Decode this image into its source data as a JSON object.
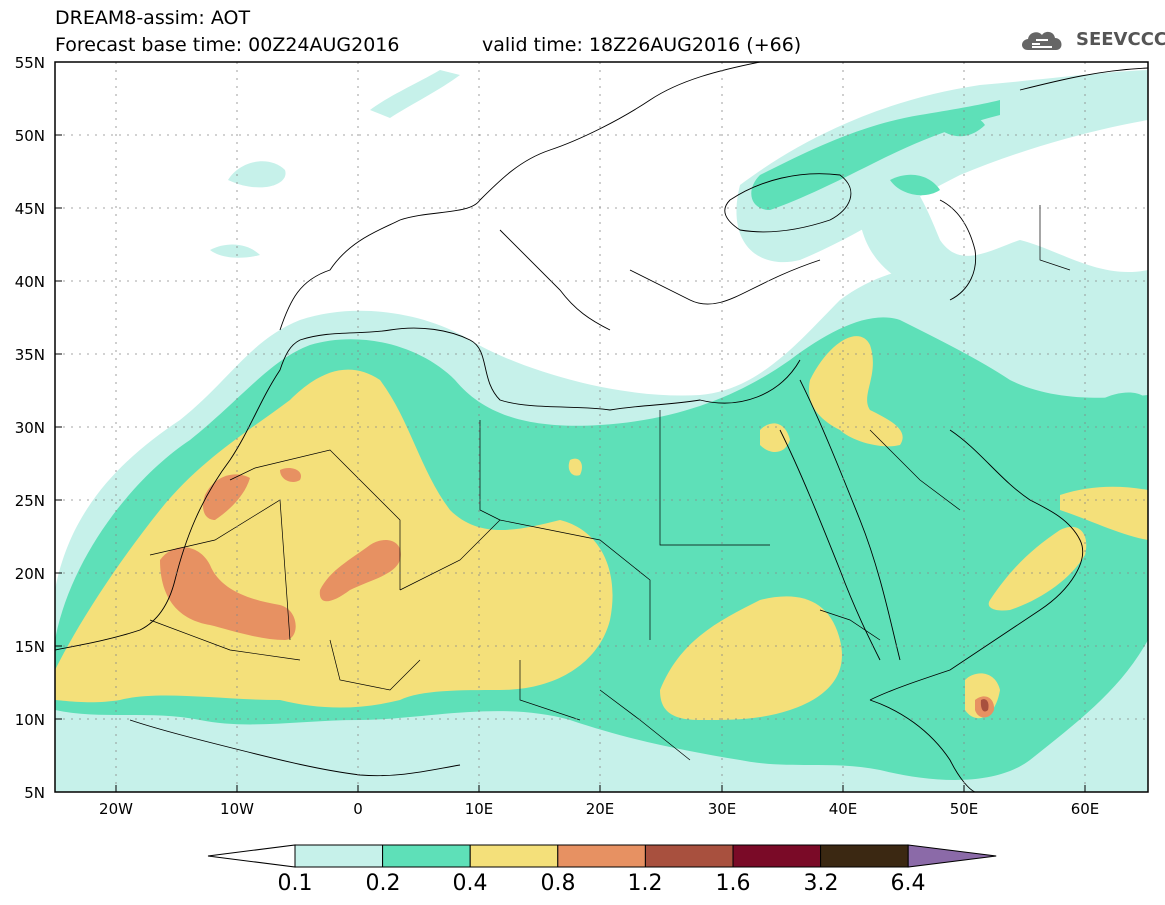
{
  "header": {
    "title_line1": "DREAM8-assim: AOT",
    "title_line2": "Forecast base time: 00Z24AUG2016",
    "valid_time": "valid time: 18Z26AUG2016 (+66)",
    "logo_text": "SEEVCCC",
    "logo_icon": "cloud-icon"
  },
  "map": {
    "type": "filled-contour-map",
    "variable": "AOT",
    "lat_labels": [
      "55N",
      "50N",
      "45N",
      "40N",
      "35N",
      "30N",
      "25N",
      "20N",
      "15N",
      "10N",
      "5N"
    ],
    "lon_labels": [
      "20W",
      "10W",
      "0",
      "10E",
      "20E",
      "30E",
      "40E",
      "50E",
      "60E"
    ],
    "lat_range": [
      5,
      55
    ],
    "lon_range": [
      -25,
      65
    ],
    "grid": "dotted"
  },
  "colorbar": {
    "labels": [
      "0.1",
      "0.2",
      "0.4",
      "0.8",
      "1.2",
      "1.6",
      "3.2",
      "6.4"
    ],
    "colors": [
      "#ffffff",
      "#c6f1ea",
      "#5ee0b8",
      "#f4e07a",
      "#e79162",
      "#a8503e",
      "#7a0a27",
      "#3b2812",
      "#8b6aa8"
    ]
  }
}
